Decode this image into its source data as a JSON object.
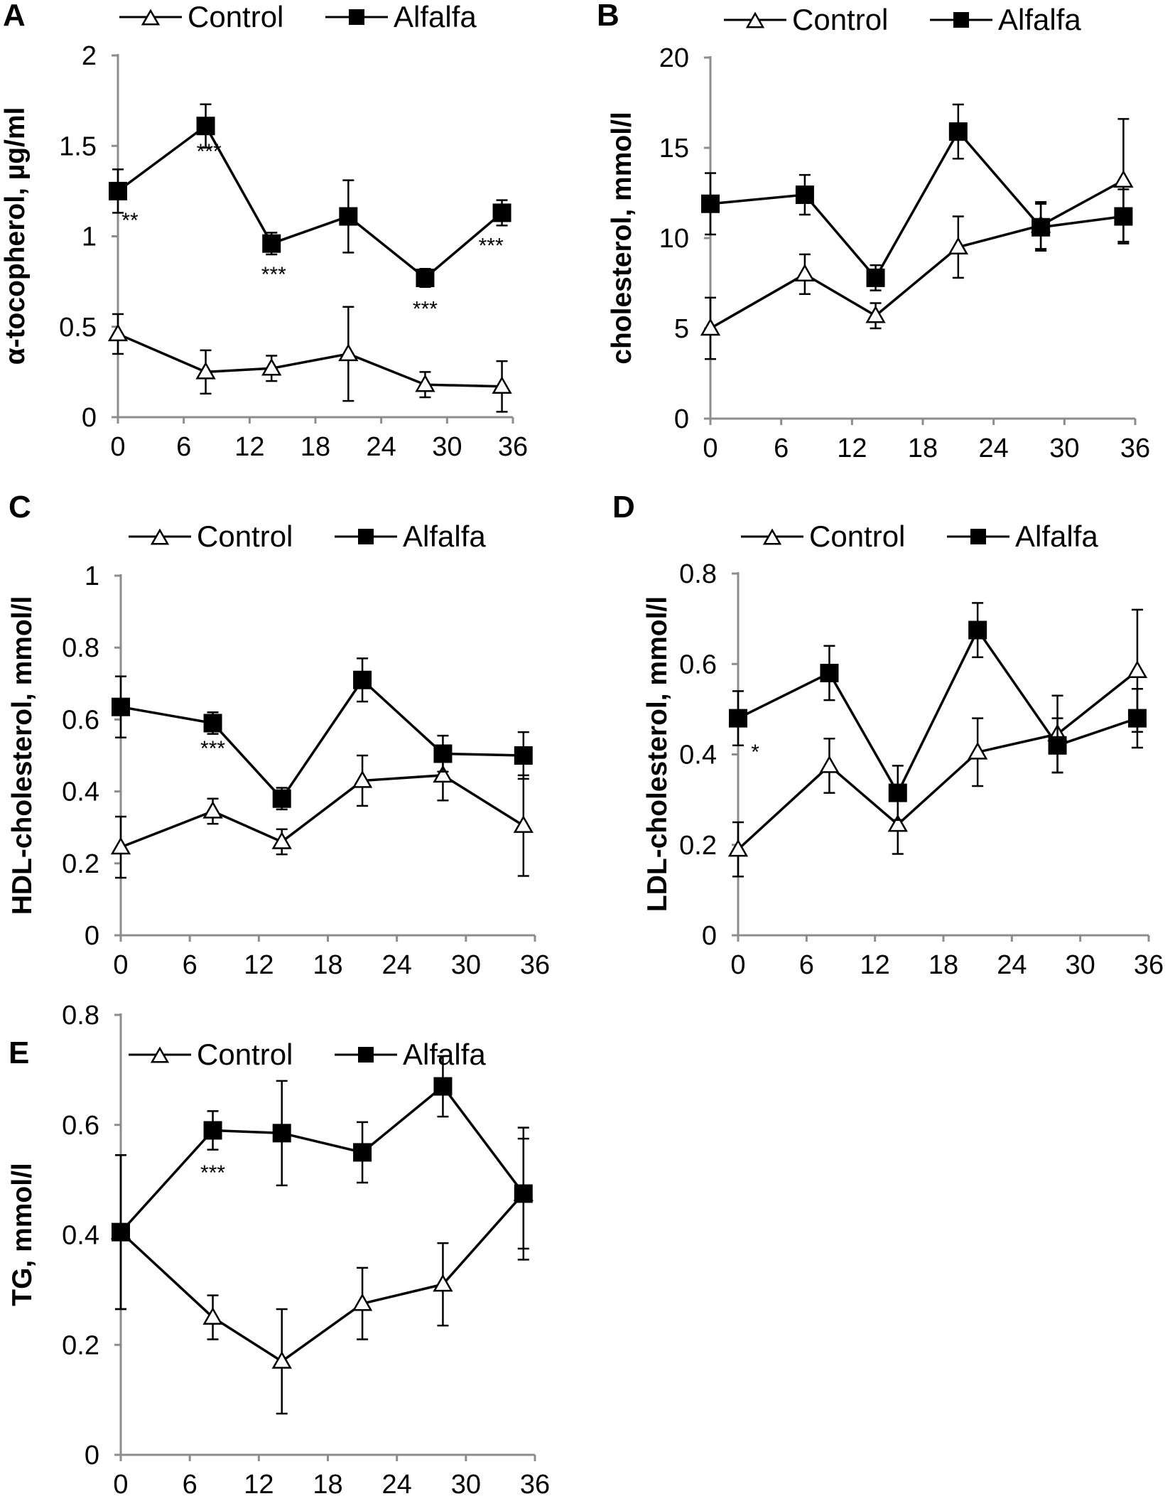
{
  "figure": {
    "legend": {
      "control_label": "Control",
      "alfalfa_label": "Alfalfa"
    },
    "colors": {
      "line": "#000000",
      "axis": "#8c8c8c",
      "marker_fill_control": "#ffffff",
      "marker_fill_alfalfa": "#000000"
    }
  },
  "chart_data": [
    {
      "panel": "A",
      "type": "line",
      "ylabel": "α-tocopherol, µg/ml",
      "ylim": [
        0,
        2
      ],
      "yticks": [
        "0",
        "0.5",
        "1",
        "1.5",
        "2"
      ],
      "ytick_values": [
        0,
        0.5,
        1,
        1.5,
        2
      ],
      "xlim": [
        0,
        36
      ],
      "xticks": [
        "0",
        "6",
        "12",
        "18",
        "24",
        "30",
        "36"
      ],
      "xtick_values": [
        0,
        6,
        12,
        18,
        24,
        30,
        36
      ],
      "x": [
        0,
        8,
        14,
        21,
        28,
        35
      ],
      "series": [
        {
          "name": "Control",
          "values": [
            0.46,
            0.25,
            0.27,
            0.35,
            0.18,
            0.17
          ],
          "errors": [
            0.11,
            0.12,
            0.07,
            0.26,
            0.07,
            0.14
          ]
        },
        {
          "name": "Alfalfa",
          "values": [
            1.25,
            1.61,
            0.96,
            1.11,
            0.77,
            1.13
          ],
          "errors": [
            0.12,
            0.12,
            0.06,
            0.2,
            0.05,
            0.07
          ]
        }
      ],
      "annotations": [
        {
          "text": "**",
          "x": 1.1,
          "y": 1.05
        },
        {
          "text": "***",
          "x": 8.3,
          "y": 1.43
        },
        {
          "text": "***",
          "x": 14.2,
          "y": 0.75
        },
        {
          "text": "***",
          "x": 28,
          "y": 0.56
        },
        {
          "text": "***",
          "x": 34,
          "y": 0.91
        }
      ]
    },
    {
      "panel": "B",
      "type": "line",
      "ylabel": "cholesterol, mmol/l",
      "ylim": [
        0,
        20
      ],
      "yticks": [
        "0",
        "5",
        "10",
        "15",
        "20"
      ],
      "ytick_values": [
        0,
        5,
        10,
        15,
        20
      ],
      "xlim": [
        0,
        36
      ],
      "xticks": [
        "0",
        "6",
        "12",
        "18",
        "24",
        "30",
        "36"
      ],
      "xtick_values": [
        0,
        6,
        12,
        18,
        24,
        30,
        36
      ],
      "x": [
        0,
        8,
        14,
        21,
        28,
        35
      ],
      "series": [
        {
          "name": "Control",
          "values": [
            5.0,
            8.0,
            5.7,
            9.5,
            10.7,
            13.2
          ],
          "errors": [
            1.7,
            1.1,
            0.7,
            1.7,
            1.3,
            3.4
          ]
        },
        {
          "name": "Alfalfa",
          "values": [
            11.9,
            12.4,
            7.8,
            15.9,
            10.6,
            11.2
          ],
          "errors": [
            1.7,
            1.1,
            0.7,
            1.5,
            1.3,
            1.5
          ]
        }
      ],
      "annotations": []
    },
    {
      "panel": "C",
      "type": "line",
      "ylabel": "HDL-cholesterol, mmol/l",
      "ylim": [
        0,
        1
      ],
      "yticks": [
        "0",
        "0.2",
        "0.4",
        "0.6",
        "0.8",
        "1"
      ],
      "ytick_values": [
        0,
        0.2,
        0.4,
        0.6,
        0.8,
        1
      ],
      "xlim": [
        0,
        36
      ],
      "xticks": [
        "0",
        "6",
        "12",
        "18",
        "24",
        "30",
        "36"
      ],
      "xtick_values": [
        0,
        6,
        12,
        18,
        24,
        30,
        36
      ],
      "x": [
        0,
        8,
        14,
        21,
        28,
        35
      ],
      "series": [
        {
          "name": "Control",
          "values": [
            0.245,
            0.345,
            0.26,
            0.43,
            0.445,
            0.305
          ],
          "errors": [
            0.085,
            0.035,
            0.035,
            0.07,
            0.07,
            0.14
          ]
        },
        {
          "name": "Alfalfa",
          "values": [
            0.635,
            0.59,
            0.38,
            0.71,
            0.505,
            0.5
          ],
          "errors": [
            0.085,
            0.03,
            0.03,
            0.06,
            0.05,
            0.065
          ]
        }
      ],
      "annotations": [
        {
          "text": "***",
          "x": 8,
          "y": 0.5
        }
      ]
    },
    {
      "panel": "D",
      "type": "line",
      "ylabel": "LDL-cholesterol, mmol/l",
      "ylim": [
        0,
        0.8
      ],
      "yticks": [
        "0",
        "0.2",
        "0.4",
        "0.6",
        "0.8"
      ],
      "ytick_values": [
        0,
        0.2,
        0.4,
        0.6,
        0.8
      ],
      "xlim": [
        0,
        36
      ],
      "xticks": [
        "0",
        "6",
        "12",
        "18",
        "24",
        "30",
        "36"
      ],
      "xtick_values": [
        0,
        6,
        12,
        18,
        24,
        30,
        36
      ],
      "x": [
        0,
        8,
        14,
        21,
        28,
        35
      ],
      "series": [
        {
          "name": "Control",
          "values": [
            0.19,
            0.375,
            0.245,
            0.405,
            0.445,
            0.585
          ],
          "errors": [
            0.06,
            0.06,
            0.065,
            0.075,
            0.085,
            0.135
          ]
        },
        {
          "name": "Alfalfa",
          "values": [
            0.48,
            0.58,
            0.315,
            0.675,
            0.42,
            0.48
          ],
          "errors": [
            0.06,
            0.06,
            0.06,
            0.06,
            0.06,
            0.065
          ]
        }
      ],
      "annotations": [
        {
          "text": "*",
          "x": 1.5,
          "y": 0.39
        }
      ]
    },
    {
      "panel": "E",
      "type": "line",
      "ylabel": "TG, mmol/l",
      "ylim": [
        0,
        0.8
      ],
      "yticks": [
        "0",
        "0.2",
        "0.4",
        "0.6",
        "0.8"
      ],
      "ytick_values": [
        0,
        0.2,
        0.4,
        0.6,
        0.8
      ],
      "xlim": [
        0,
        36
      ],
      "xticks": [
        "0",
        "6",
        "12",
        "18",
        "24",
        "30",
        "36"
      ],
      "xtick_values": [
        0,
        6,
        12,
        18,
        24,
        30,
        36
      ],
      "x": [
        0,
        8,
        14,
        21,
        28,
        35
      ],
      "series": [
        {
          "name": "Control",
          "values": [
            0.405,
            0.25,
            0.17,
            0.275,
            0.31,
            0.475
          ],
          "errors": [
            0.14,
            0.04,
            0.095,
            0.065,
            0.075,
            0.1
          ]
        },
        {
          "name": "Alfalfa",
          "values": [
            0.405,
            0.59,
            0.585,
            0.55,
            0.67,
            0.475
          ],
          "errors": [
            0.14,
            0.035,
            0.095,
            0.055,
            0.055,
            0.12
          ]
        }
      ],
      "annotations": [
        {
          "text": "***",
          "x": 8,
          "y": 0.5
        }
      ]
    }
  ]
}
